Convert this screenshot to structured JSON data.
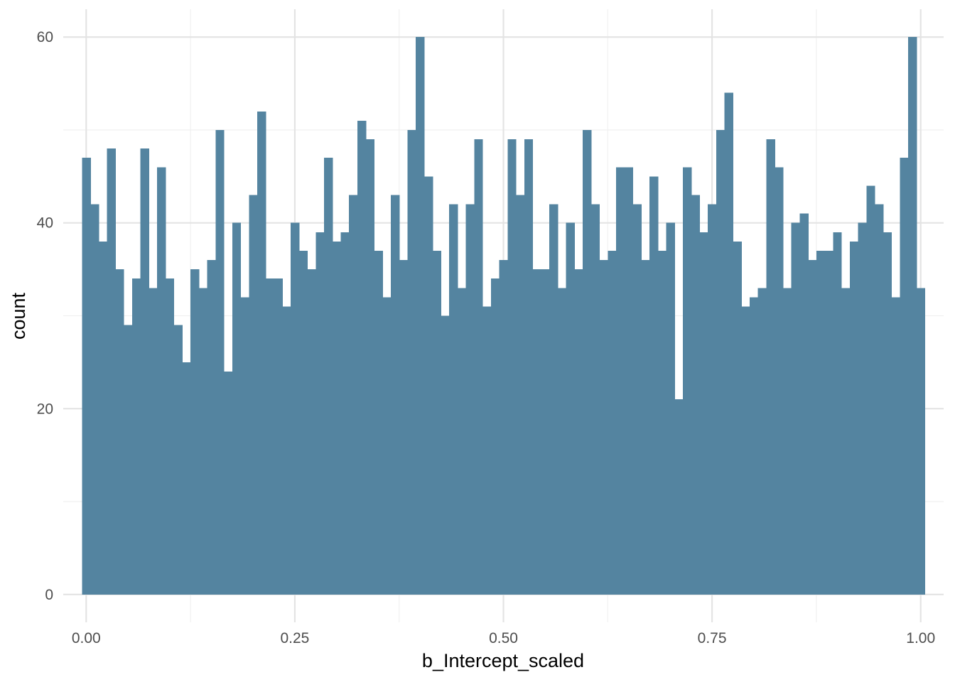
{
  "chart_data": {
    "type": "bar",
    "subtype": "histogram",
    "xlabel": "b_Intercept_scaled",
    "ylabel": "count",
    "xlim": [
      -0.0275,
      1.0275
    ],
    "ylim": [
      -3,
      63
    ],
    "grid": true,
    "x_ticks": [
      {
        "value": 0,
        "label": "0.00"
      },
      {
        "value": 0.25,
        "label": "0.25"
      },
      {
        "value": 0.5,
        "label": "0.50"
      },
      {
        "value": 0.75,
        "label": "0.75"
      },
      {
        "value": 1,
        "label": "1.00"
      }
    ],
    "x_minor_ticks": [
      0.125,
      0.375,
      0.625,
      0.875
    ],
    "y_ticks": [
      {
        "value": 0,
        "label": "0"
      },
      {
        "value": 20,
        "label": "20"
      },
      {
        "value": 40,
        "label": "40"
      },
      {
        "value": 60,
        "label": "60"
      }
    ],
    "y_minor_ticks": [
      10,
      30,
      50
    ],
    "bin_start": -0.005,
    "bin_width": 0.01,
    "counts": [
      47,
      42,
      38,
      48,
      35,
      29,
      34,
      48,
      33,
      46,
      34,
      29,
      25,
      35,
      33,
      36,
      50,
      24,
      40,
      32,
      43,
      52,
      34,
      34,
      31,
      40,
      37,
      35,
      39,
      47,
      38,
      39,
      43,
      51,
      49,
      37,
      32,
      43,
      36,
      50,
      60,
      45,
      37,
      30,
      42,
      33,
      42,
      49,
      31,
      34,
      36,
      49,
      43,
      49,
      35,
      35,
      42,
      33,
      40,
      35,
      50,
      42,
      36,
      37,
      46,
      46,
      42,
      36,
      45,
      37,
      40,
      21,
      46,
      43,
      39,
      42,
      50,
      54,
      38,
      31,
      32,
      33,
      49,
      46,
      33,
      40,
      41,
      36,
      37,
      37,
      39,
      33,
      38,
      40,
      44,
      42,
      39,
      32,
      47,
      60,
      33
    ],
    "colors": {
      "bar": "#5484A0",
      "grid_major": "#E3E3E3",
      "grid_minor": "#EFEFEF",
      "tick_text": "#4D4D4D",
      "title_text": "#000000"
    }
  }
}
